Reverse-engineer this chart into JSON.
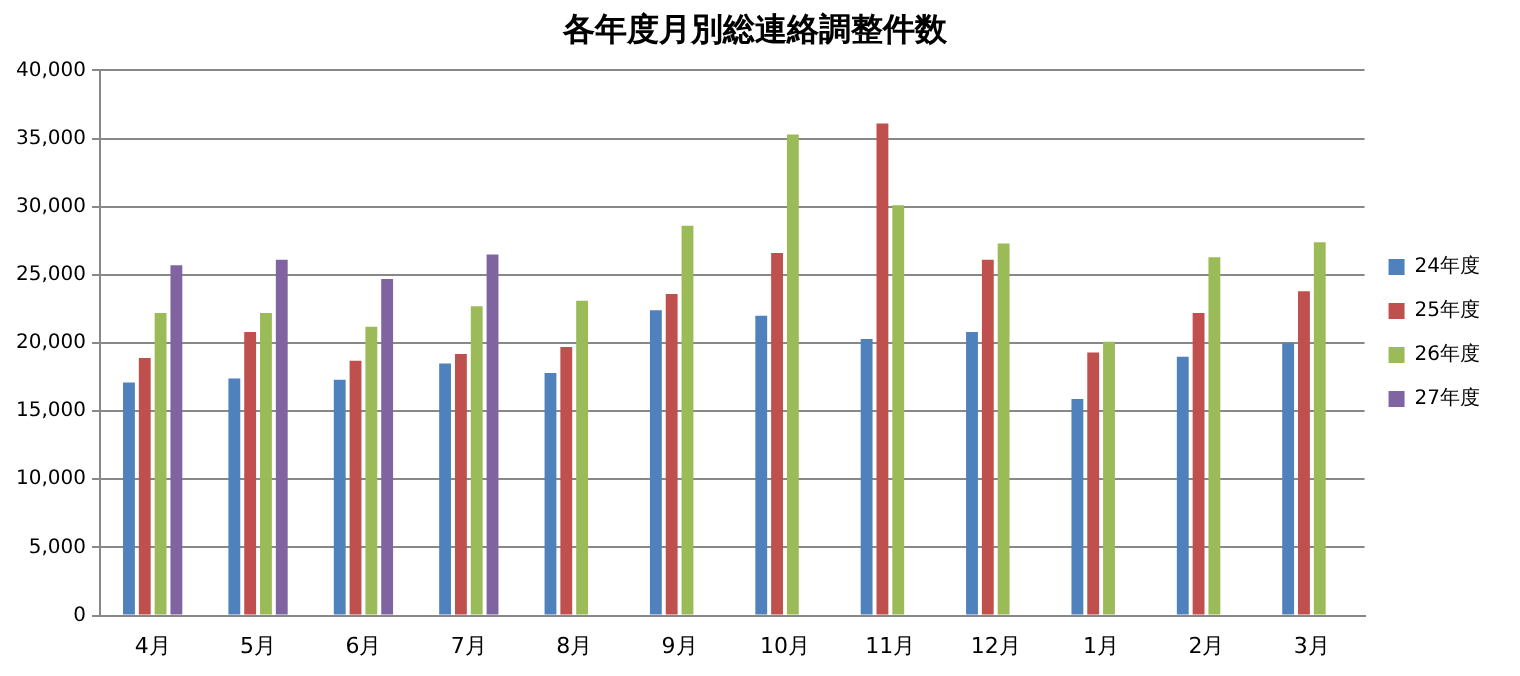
{
  "chart_data": {
    "type": "bar",
    "title": "各年度月別総連絡調整件数",
    "categories": [
      "4月",
      "5月",
      "6月",
      "7月",
      "8月",
      "9月",
      "10月",
      "11月",
      "12月",
      "1月",
      "2月",
      "3月"
    ],
    "series": [
      {
        "name": "24年度",
        "color": "#4f81bd",
        "values": [
          17100,
          17400,
          17300,
          18500,
          17800,
          22400,
          22000,
          20300,
          20800,
          15900,
          19000,
          20000
        ]
      },
      {
        "name": "25年度",
        "color": "#c0504d",
        "values": [
          18900,
          20800,
          18700,
          19200,
          19700,
          23600,
          26600,
          36100,
          26100,
          19300,
          22200,
          23800
        ]
      },
      {
        "name": "26年度",
        "color": "#9bbb59",
        "values": [
          22200,
          22200,
          21200,
          22700,
          23100,
          28600,
          35300,
          30100,
          27300,
          20100,
          26300,
          27400
        ]
      },
      {
        "name": "27年度",
        "color": "#8064a2",
        "values": [
          25700,
          26100,
          24700,
          26500,
          null,
          null,
          null,
          null,
          null,
          null,
          null,
          null
        ]
      }
    ],
    "ylim": [
      0,
      40000
    ],
    "yticks": [
      {
        "value": 0,
        "label": "0"
      },
      {
        "value": 5000,
        "label": "5,000"
      },
      {
        "value": 10000,
        "label": "10,000"
      },
      {
        "value": 15000,
        "label": "15,000"
      },
      {
        "value": 20000,
        "label": "20,000"
      },
      {
        "value": 25000,
        "label": "25,000"
      },
      {
        "value": 30000,
        "label": "30,000"
      },
      {
        "value": 35000,
        "label": "35,000"
      },
      {
        "value": 40000,
        "label": "40,000"
      }
    ],
    "grid": "y",
    "legend": "right"
  }
}
